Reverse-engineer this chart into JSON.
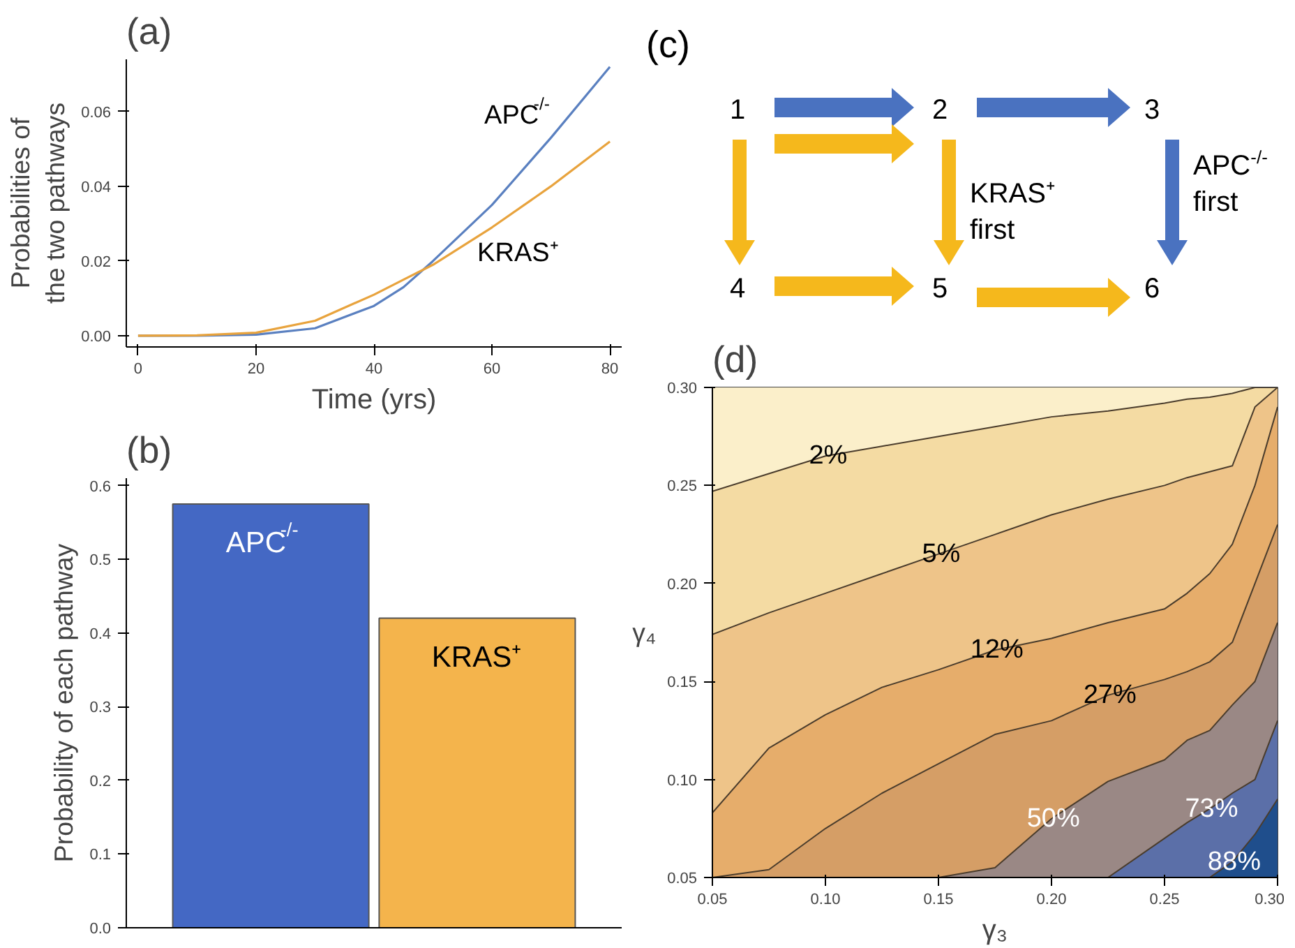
{
  "chart_data": [
    {
      "type": "line",
      "title": "(a)",
      "xlabel": "Time (yrs)",
      "ylabel": "Probabilities of\nthe two pathways",
      "x": [
        0,
        10,
        20,
        30,
        40,
        45,
        50,
        60,
        70,
        80
      ],
      "series": [
        {
          "name": "APC$^{-/-}$",
          "color": "#5a80c0",
          "values": [
            0,
            0,
            0.0003,
            0.002,
            0.008,
            0.013,
            0.02,
            0.035,
            0.053,
            0.072
          ]
        },
        {
          "name": "KRAS⁺",
          "color": "#e8a33d",
          "values": [
            0,
            0.0001,
            0.0008,
            0.004,
            0.011,
            0.015,
            0.019,
            0.029,
            0.04,
            0.052
          ]
        }
      ],
      "xlim": [
        -2,
        82
      ],
      "ylim": [
        -0.003,
        0.074
      ],
      "xticks": [
        0,
        20,
        40,
        60,
        80
      ],
      "yticks": [
        {
          "value": 0,
          "label": "0.00"
        },
        {
          "value": 0.02,
          "label": "0.02"
        },
        {
          "value": 0.04,
          "label": "0.04"
        },
        {
          "value": 0.06,
          "label": "0.06"
        }
      ]
    },
    {
      "type": "bar",
      "title": "(b)",
      "ylabel": "Probability of each pathway",
      "categories": [
        "APC$^{-/-}$",
        "KRAS⁺"
      ],
      "values": [
        0.575,
        0.42
      ],
      "colors": [
        "#4468c4",
        "#f4b44c"
      ],
      "ylim": [
        0,
        0.61
      ],
      "yticks": [
        {
          "value": 0,
          "label": "0.0"
        },
        0.1,
        0.2,
        0.3,
        0.4,
        0.5,
        0.6
      ],
      "tick_labels": "y"
    },
    {
      "type": "other",
      "title": "(c)",
      "annotations": [
        "1",
        "2",
        "3",
        "4",
        "5",
        "6",
        "KRAS⁺\nfirst",
        "APC$^{-/-}$\nfirst"
      ]
    },
    {
      "type": "area",
      "title": "(d)",
      "xlabel": "γ₃",
      "ylabel": "γ₄",
      "x": [
        0.05,
        0.075,
        0.1,
        0.125,
        0.15,
        0.175,
        0.2,
        0.225,
        0.25,
        0.26,
        0.27,
        0.28,
        0.29,
        0.3
      ],
      "series": [
        {
          "color": "#1f4e8c",
          "values": [
            0.05,
            0.05,
            0.05,
            0.05,
            0.05,
            0.05,
            0.05,
            0.05,
            0.05,
            0.05,
            0.05,
            0.058,
            0.072,
            0.09
          ]
        },
        {
          "color": "#5b6fa8",
          "values": [
            0.05,
            0.05,
            0.05,
            0.05,
            0.05,
            0.05,
            0.05,
            0.05,
            0.07,
            0.078,
            0.085,
            0.093,
            0.1,
            0.13
          ]
        },
        {
          "color": "#9a8885",
          "values": [
            0.05,
            0.05,
            0.05,
            0.05,
            0.05,
            0.055,
            0.08,
            0.099,
            0.11,
            0.12,
            0.125,
            0.138,
            0.15,
            0.18
          ]
        },
        {
          "color": "#d59e66",
          "values": [
            0.05,
            0.054,
            0.075,
            0.093,
            0.108,
            0.123,
            0.13,
            0.143,
            0.151,
            0.155,
            0.16,
            0.17,
            0.2,
            0.23
          ]
        },
        {
          "color": "#e6ad6b",
          "values": [
            0.083,
            0.116,
            0.133,
            0.147,
            0.156,
            0.166,
            0.172,
            0.18,
            0.187,
            0.195,
            0.205,
            0.22,
            0.25,
            0.29
          ]
        },
        {
          "color": "#eec489",
          "values": [
            0.174,
            0.185,
            0.195,
            0.205,
            0.215,
            0.225,
            0.235,
            0.243,
            0.25,
            0.254,
            0.257,
            0.26,
            0.29,
            0.3
          ]
        },
        {
          "color": "#f4dba3",
          "values": [
            0.247,
            0.256,
            0.265,
            0.27,
            0.275,
            0.28,
            0.285,
            0.288,
            0.292,
            0.294,
            0.295,
            0.297,
            0.3,
            0.3
          ]
        },
        {
          "color": "#fbefca",
          "values": [
            0.3,
            0.3,
            0.3,
            0.3,
            0.3,
            0.3,
            0.3,
            0.3,
            0.3,
            0.3,
            0.3,
            0.3,
            0.3,
            0.3
          ]
        }
      ],
      "annotations": [
        {
          "text": "2%",
          "x": 0.1,
          "y": 0.265
        },
        {
          "text": "5%",
          "x": 0.15,
          "y": 0.215
        },
        {
          "text": "12%",
          "x": 0.175,
          "y": 0.166
        },
        {
          "text": "27%",
          "x": 0.225,
          "y": 0.143
        },
        {
          "text": "50%",
          "x": 0.2,
          "y": 0.08
        },
        {
          "text": "73%",
          "x": 0.27,
          "y": 0.085
        },
        {
          "text": "88%",
          "x": 0.28,
          "y": 0.058
        }
      ],
      "xlim": [
        0.05,
        0.3
      ],
      "ylim": [
        0.05,
        0.3
      ],
      "xticks": [
        0.05,
        {
          "value": 0.1,
          "label": "0.10"
        },
        0.15,
        {
          "value": 0.2,
          "label": "0.20"
        },
        0.25,
        {
          "value": 0.3,
          "label": "0.30"
        }
      ],
      "yticks": [
        0.05,
        {
          "value": 0.1,
          "label": "0.10"
        },
        0.15,
        {
          "value": 0.2,
          "label": "0.20"
        },
        0.25,
        {
          "value": 0.3,
          "label": "0.30"
        }
      ]
    }
  ]
}
